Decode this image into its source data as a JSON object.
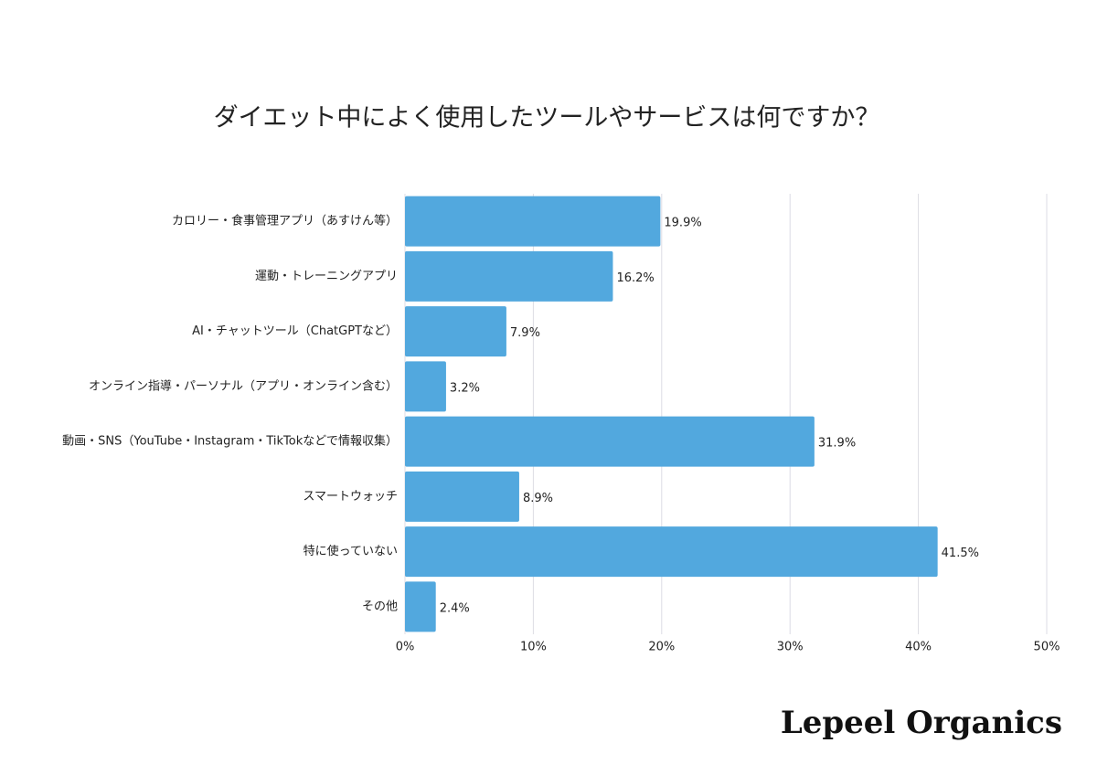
{
  "chart_data": {
    "type": "barh",
    "title": "ダイエット中によく使用したツールやサービスは何ですか？",
    "categories": [
      "カロリー・食事管理アプリ（あすけん等）",
      "運動・トレーニングアプリ",
      "AI・チャットツール（ChatGPTなど）",
      "オンライン指導・パーソナル（アプリ・オンライン含む）",
      "動画・SNS（YouTube・Instagram・TikTokなどで情報収集）",
      "スマートウォッチ",
      "特に使っていない",
      "その他"
    ],
    "values": [
      19.9,
      16.2,
      7.9,
      3.2,
      31.9,
      8.9,
      41.5,
      2.4
    ],
    "value_labels": [
      "19.9%",
      "16.2%",
      "7.9%",
      "3.2%",
      "31.9%",
      "8.9%",
      "41.5%",
      "2.4%"
    ],
    "color": "#52a8de",
    "xlim": [
      0,
      50
    ],
    "xticks": [
      {
        "value": 0,
        "label": "0%"
      },
      {
        "value": 10,
        "label": "10%"
      },
      {
        "value": 20,
        "label": "20%"
      },
      {
        "value": 30,
        "label": "30%"
      },
      {
        "value": 40,
        "label": "40%"
      },
      {
        "value": 50,
        "label": "50%"
      }
    ],
    "grid": true,
    "watermark": "Lepeel Organics"
  }
}
